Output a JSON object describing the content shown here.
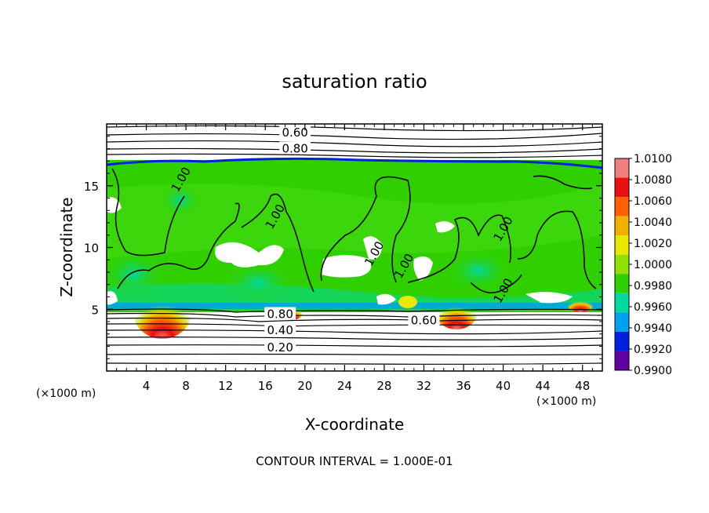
{
  "chart_data": {
    "type": "heatmap",
    "title": "saturation ratio",
    "xlabel": "X-coordinate",
    "ylabel": "Z-coordinate",
    "x_unit_label": "(×1000 m)",
    "y_unit_label": "(×1000 m)",
    "xlim": [
      0,
      50
    ],
    "ylim": [
      0,
      20
    ],
    "x_ticks": [
      4,
      8,
      12,
      16,
      20,
      24,
      28,
      32,
      36,
      40,
      44,
      48
    ],
    "y_ticks": [
      5,
      10,
      15
    ],
    "footer": "CONTOUR INTERVAL = 1.000E-01",
    "colorbar": {
      "levels": [
        "1.0100",
        "1.0080",
        "1.0060",
        "1.0040",
        "1.0020",
        "1.0000",
        "0.9980",
        "0.9960",
        "0.9940",
        "0.9920",
        "0.9900"
      ],
      "colors": [
        "#f08080",
        "#e81010",
        "#ff6000",
        "#f0b000",
        "#e8e800",
        "#90e000",
        "#30d000",
        "#00d8a0",
        "#00a0f0",
        "#0020e0",
        "#6000a0"
      ]
    },
    "contour_labels": [
      {
        "text": "0.60",
        "x": 19,
        "z": 19.3
      },
      {
        "text": "0.80",
        "x": 19,
        "z": 18.0
      },
      {
        "text": "1.00",
        "x": 7.5,
        "z": 15.5
      },
      {
        "text": "1.00",
        "x": 17,
        "z": 12.5
      },
      {
        "text": "1.00",
        "x": 27,
        "z": 9.5
      },
      {
        "text": "1.00",
        "x": 30,
        "z": 8.5
      },
      {
        "text": "1.00",
        "x": 40,
        "z": 11.5
      },
      {
        "text": "1.00",
        "x": 40,
        "z": 6.5
      },
      {
        "text": "0.80",
        "x": 17.5,
        "z": 4.6
      },
      {
        "text": "0.60",
        "x": 32,
        "z": 4.1
      },
      {
        "text": "0.40",
        "x": 17.5,
        "z": 3.3
      },
      {
        "text": "0.20",
        "x": 17.5,
        "z": 1.9
      }
    ]
  }
}
